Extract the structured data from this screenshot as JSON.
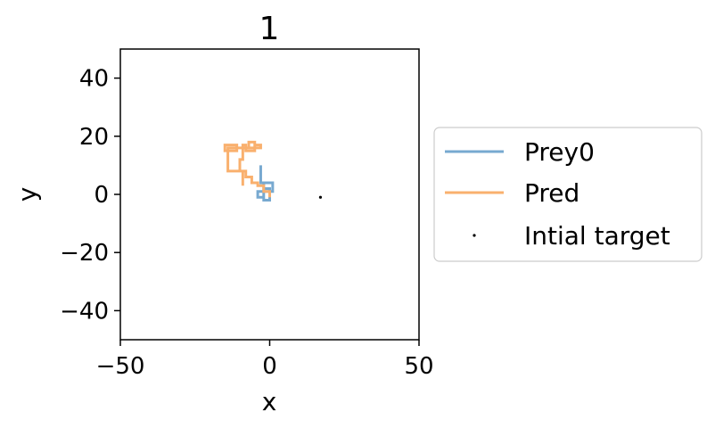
{
  "chart_data": {
    "type": "line",
    "title": "1",
    "xlabel": "x",
    "ylabel": "y",
    "xlim": [
      -50,
      50
    ],
    "ylim": [
      -50,
      50
    ],
    "xticks": [
      -50,
      0,
      50
    ],
    "xtick_labels": [
      "−50",
      "0",
      "50"
    ],
    "yticks": [
      -40,
      -20,
      0,
      20,
      40
    ],
    "ytick_labels": [
      "−40",
      "−20",
      "0",
      "20",
      "40"
    ],
    "grid": false,
    "legend_position": "outside-right",
    "series": [
      {
        "name": "Prey0",
        "kind": "line",
        "color": "#77a9d0",
        "x": [
          -3,
          -3,
          -3,
          -3,
          -2,
          -2,
          -2,
          -2,
          -2,
          0,
          0,
          0,
          0,
          -2,
          -2,
          1,
          1,
          -4,
          -4,
          -2,
          -2,
          0,
          0,
          -2
        ],
        "y": [
          10,
          8,
          6,
          4,
          4,
          2,
          0,
          -1,
          -2,
          -2,
          -1,
          1,
          2,
          2,
          4,
          4,
          1,
          1,
          -1,
          -1,
          1,
          1,
          -2,
          -2
        ]
      },
      {
        "name": "Pred",
        "kind": "line",
        "color": "#f9b06e",
        "x": [
          0,
          0,
          -2,
          -2,
          -4,
          -4,
          -6,
          -6,
          -8,
          -8,
          -10,
          -10,
          -9,
          -9,
          -8,
          -8,
          -5,
          -5,
          -3,
          -3,
          -7,
          -7,
          -5,
          -5,
          -11,
          -11,
          -15,
          -15,
          -11,
          -11,
          -14,
          -14,
          -9,
          -9
        ],
        "y": [
          -1,
          1,
          1,
          3,
          3,
          4,
          4,
          6,
          6,
          8,
          8,
          12,
          12,
          17,
          17,
          15,
          15,
          17,
          17,
          16,
          16,
          18,
          18,
          16,
          16,
          17,
          17,
          15,
          15,
          16,
          16,
          8,
          8,
          3
        ]
      },
      {
        "name": "Intial target",
        "kind": "scatter",
        "color": "#000000",
        "x": [
          17
        ],
        "y": [
          -1
        ]
      }
    ]
  }
}
